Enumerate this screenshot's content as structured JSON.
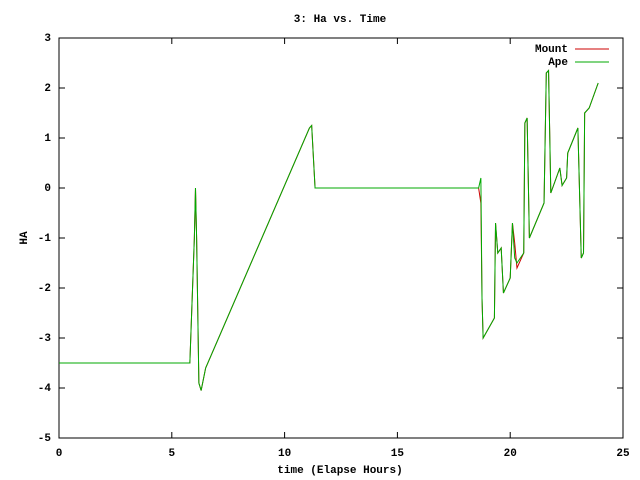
{
  "chart_data": {
    "type": "line",
    "title": "3: Ha vs. Time",
    "x_label": "time (Elapse Hours)",
    "y_label": "HA",
    "x": [
      0,
      5.8,
      6.0,
      6.05,
      6.1,
      6.2,
      6.3,
      6.5,
      11.1,
      11.2,
      11.35,
      18.6,
      18.7,
      18.75,
      18.8,
      19.3,
      19.35,
      19.45,
      19.6,
      19.7,
      20.0,
      20.1,
      20.2,
      20.3,
      20.6,
      20.65,
      20.75,
      20.85,
      21.5,
      21.6,
      21.7,
      21.8,
      22.2,
      22.3,
      22.5,
      22.55,
      23.0,
      23.15,
      23.25,
      23.3,
      23.5,
      23.9
    ],
    "series": [
      {
        "name": "Mount",
        "color": "#cc0000",
        "values": [
          -3.5,
          -3.5,
          -1.0,
          0,
          -1.0,
          -3.9,
          -4.05,
          -3.6,
          1.2,
          1.25,
          0,
          0,
          -0.3,
          -2.2,
          -3.0,
          -2.6,
          -0.7,
          -1.3,
          -1.2,
          -2.1,
          -1.8,
          -0.7,
          -1.1,
          -1.6,
          -1.3,
          1.3,
          1.4,
          -1.0,
          -0.3,
          2.3,
          2.35,
          -0.1,
          0.4,
          0.05,
          0.2,
          0.7,
          1.2,
          -1.4,
          -1.3,
          1.5,
          1.6,
          2.1
        ]
      },
      {
        "name": "Ape",
        "color": "#00aa00",
        "values": [
          -3.5,
          -3.5,
          -1.0,
          0,
          -1.0,
          -3.9,
          -4.05,
          -3.6,
          1.2,
          1.25,
          0,
          0,
          0.2,
          -2.2,
          -3.0,
          -2.6,
          -0.7,
          -1.3,
          -1.2,
          -2.1,
          -1.8,
          -0.7,
          -1.4,
          -1.5,
          -1.3,
          1.3,
          1.4,
          -1.0,
          -0.3,
          2.3,
          2.35,
          -0.1,
          0.4,
          0.05,
          0.2,
          0.7,
          1.2,
          -1.4,
          -1.3,
          1.5,
          1.6,
          2.1
        ]
      }
    ],
    "xlim": [
      0,
      25
    ],
    "xticks": [
      0,
      5,
      10,
      15,
      20,
      25
    ],
    "ylim": [
      -5,
      3
    ],
    "yticks": [
      -5,
      -4,
      -3,
      -2,
      -1,
      0,
      1,
      2,
      3
    ],
    "legend": "top-right"
  }
}
